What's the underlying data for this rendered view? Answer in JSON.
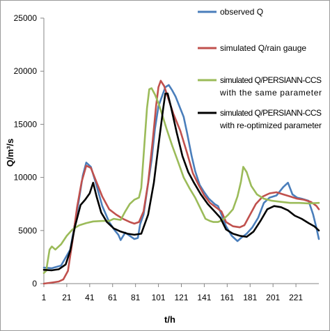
{
  "chart_data": {
    "type": "line",
    "title": "",
    "xlabel": "t/h",
    "ylabel": "Q/m³/s",
    "xlim": [
      1,
      241
    ],
    "ylim": [
      0,
      25000
    ],
    "x_ticks": [
      1,
      21,
      41,
      61,
      81,
      101,
      121,
      141,
      161,
      181,
      201,
      221
    ],
    "y_ticks": [
      0,
      5000,
      10000,
      15000,
      20000,
      25000
    ],
    "grid": false,
    "legend_position": "top-right",
    "series": [
      {
        "name": "observed Q",
        "color": "#4a7ebb",
        "points": [
          [
            1,
            1500
          ],
          [
            8,
            1450
          ],
          [
            16,
            1700
          ],
          [
            24,
            3200
          ],
          [
            30,
            6800
          ],
          [
            35,
            10200
          ],
          [
            38,
            11400
          ],
          [
            42,
            11000
          ],
          [
            46,
            9600
          ],
          [
            52,
            7300
          ],
          [
            58,
            5800
          ],
          [
            63,
            5000
          ],
          [
            66,
            4600
          ],
          [
            68,
            4100
          ],
          [
            72,
            4800
          ],
          [
            76,
            4500
          ],
          [
            80,
            4200
          ],
          [
            83,
            4300
          ],
          [
            85,
            5600
          ],
          [
            88,
            6500
          ],
          [
            91,
            8700
          ],
          [
            95,
            11600
          ],
          [
            98,
            14600
          ],
          [
            101,
            16700
          ],
          [
            104,
            17600
          ],
          [
            107,
            18500
          ],
          [
            110,
            18700
          ],
          [
            113,
            18200
          ],
          [
            116,
            17600
          ],
          [
            120,
            16500
          ],
          [
            123,
            15700
          ],
          [
            126,
            14200
          ],
          [
            130,
            12000
          ],
          [
            133,
            10600
          ],
          [
            137,
            9300
          ],
          [
            141,
            8600
          ],
          [
            145,
            8000
          ],
          [
            150,
            7500
          ],
          [
            153,
            7300
          ],
          [
            156,
            6500
          ],
          [
            160,
            5400
          ],
          [
            165,
            4500
          ],
          [
            170,
            4000
          ],
          [
            173,
            4300
          ],
          [
            178,
            4700
          ],
          [
            183,
            5300
          ],
          [
            188,
            6200
          ],
          [
            193,
            7600
          ],
          [
            198,
            8100
          ],
          [
            204,
            8300
          ],
          [
            210,
            9100
          ],
          [
            214,
            9500
          ],
          [
            218,
            8400
          ],
          [
            222,
            8100
          ],
          [
            226,
            8000
          ],
          [
            232,
            7800
          ],
          [
            236,
            6500
          ],
          [
            239,
            5200
          ],
          [
            241,
            4200
          ]
        ]
      },
      {
        "name": "simulated Q/rain gauge",
        "color": "#c0504d",
        "points": [
          [
            1,
            0
          ],
          [
            8,
            100
          ],
          [
            14,
            200
          ],
          [
            18,
            400
          ],
          [
            22,
            1200
          ],
          [
            26,
            4000
          ],
          [
            30,
            7200
          ],
          [
            34,
            9600
          ],
          [
            38,
            11100
          ],
          [
            42,
            10900
          ],
          [
            46,
            9800
          ],
          [
            52,
            8200
          ],
          [
            58,
            7000
          ],
          [
            64,
            6500
          ],
          [
            70,
            6100
          ],
          [
            76,
            5800
          ],
          [
            80,
            5650
          ],
          [
            84,
            5800
          ],
          [
            88,
            6800
          ],
          [
            92,
            9500
          ],
          [
            96,
            13500
          ],
          [
            99,
            16800
          ],
          [
            101,
            18500
          ],
          [
            103,
            19100
          ],
          [
            106,
            18600
          ],
          [
            110,
            17300
          ],
          [
            114,
            16000
          ],
          [
            120,
            14400
          ],
          [
            126,
            12300
          ],
          [
            131,
            10400
          ],
          [
            136,
            9300
          ],
          [
            141,
            8300
          ],
          [
            146,
            7600
          ],
          [
            151,
            7200
          ],
          [
            156,
            6800
          ],
          [
            160,
            5800
          ],
          [
            166,
            5400
          ],
          [
            172,
            5300
          ],
          [
            176,
            5500
          ],
          [
            180,
            6300
          ],
          [
            186,
            7500
          ],
          [
            192,
            8200
          ],
          [
            198,
            8500
          ],
          [
            204,
            8600
          ],
          [
            210,
            8400
          ],
          [
            216,
            8200
          ],
          [
            222,
            8000
          ],
          [
            228,
            7900
          ],
          [
            234,
            7700
          ],
          [
            239,
            7300
          ],
          [
            241,
            7000
          ]
        ]
      },
      {
        "name": "simulated Q/PERSIANN-CCS with the same parameter",
        "color": "#9bbb59",
        "points": [
          [
            1,
            1000
          ],
          [
            3,
            1200
          ],
          [
            6,
            3200
          ],
          [
            8,
            3500
          ],
          [
            11,
            3200
          ],
          [
            16,
            3700
          ],
          [
            21,
            4500
          ],
          [
            26,
            5100
          ],
          [
            32,
            5500
          ],
          [
            38,
            5700
          ],
          [
            44,
            5850
          ],
          [
            52,
            5900
          ],
          [
            58,
            5900
          ],
          [
            62,
            6100
          ],
          [
            68,
            6000
          ],
          [
            72,
            6800
          ],
          [
            76,
            7500
          ],
          [
            80,
            7900
          ],
          [
            84,
            8100
          ],
          [
            86,
            9000
          ],
          [
            88,
            12000
          ],
          [
            91,
            16500
          ],
          [
            93,
            18300
          ],
          [
            95,
            18400
          ],
          [
            98,
            17800
          ],
          [
            101,
            17000
          ],
          [
            104,
            16000
          ],
          [
            108,
            14600
          ],
          [
            113,
            13000
          ],
          [
            118,
            11500
          ],
          [
            123,
            10000
          ],
          [
            128,
            9000
          ],
          [
            133,
            8100
          ],
          [
            138,
            7000
          ],
          [
            142,
            6100
          ],
          [
            146,
            5900
          ],
          [
            149,
            5800
          ],
          [
            153,
            5800
          ],
          [
            157,
            6000
          ],
          [
            162,
            6500
          ],
          [
            166,
            7000
          ],
          [
            170,
            8200
          ],
          [
            173,
            9600
          ],
          [
            175,
            11000
          ],
          [
            178,
            10500
          ],
          [
            182,
            9200
          ],
          [
            187,
            8400
          ],
          [
            193,
            8000
          ],
          [
            200,
            7800
          ],
          [
            208,
            7700
          ],
          [
            216,
            7600
          ],
          [
            224,
            7600
          ],
          [
            232,
            7550
          ],
          [
            241,
            7600
          ]
        ]
      },
      {
        "name": "simulated Q/PERSIANN-CCS with re-optimized parameter",
        "color": "#000000",
        "points": [
          [
            1,
            1300
          ],
          [
            8,
            1250
          ],
          [
            14,
            1350
          ],
          [
            20,
            1800
          ],
          [
            24,
            3100
          ],
          [
            28,
            5300
          ],
          [
            33,
            7400
          ],
          [
            37,
            7900
          ],
          [
            41,
            8500
          ],
          [
            44,
            9500
          ],
          [
            47,
            8200
          ],
          [
            51,
            6700
          ],
          [
            56,
            5800
          ],
          [
            62,
            5200
          ],
          [
            68,
            4900
          ],
          [
            74,
            4700
          ],
          [
            80,
            4600
          ],
          [
            86,
            4700
          ],
          [
            92,
            6500
          ],
          [
            97,
            9500
          ],
          [
            101,
            13000
          ],
          [
            105,
            16400
          ],
          [
            107,
            17900
          ],
          [
            109,
            17900
          ],
          [
            112,
            16600
          ],
          [
            117,
            14200
          ],
          [
            122,
            12000
          ],
          [
            127,
            10500
          ],
          [
            132,
            9500
          ],
          [
            138,
            8400
          ],
          [
            144,
            7500
          ],
          [
            150,
            6800
          ],
          [
            155,
            6200
          ],
          [
            160,
            5100
          ],
          [
            166,
            4700
          ],
          [
            172,
            4500
          ],
          [
            178,
            4400
          ],
          [
            184,
            4900
          ],
          [
            190,
            5900
          ],
          [
            196,
            7000
          ],
          [
            202,
            7300
          ],
          [
            208,
            7200
          ],
          [
            214,
            6900
          ],
          [
            220,
            6400
          ],
          [
            226,
            6100
          ],
          [
            232,
            5700
          ],
          [
            237,
            5400
          ],
          [
            241,
            5000
          ]
        ]
      }
    ],
    "legend": [
      {
        "lines": [
          "observed Q"
        ]
      },
      {
        "lines": [
          "simulated Q/rain gauge"
        ]
      },
      {
        "lines": [
          "simulated Q/PERSIANN-CCS",
          "with the same parameter"
        ]
      },
      {
        "lines": [
          "simulated Q/PERSIANN-CCS",
          "with re-optimized parameter"
        ]
      }
    ]
  }
}
